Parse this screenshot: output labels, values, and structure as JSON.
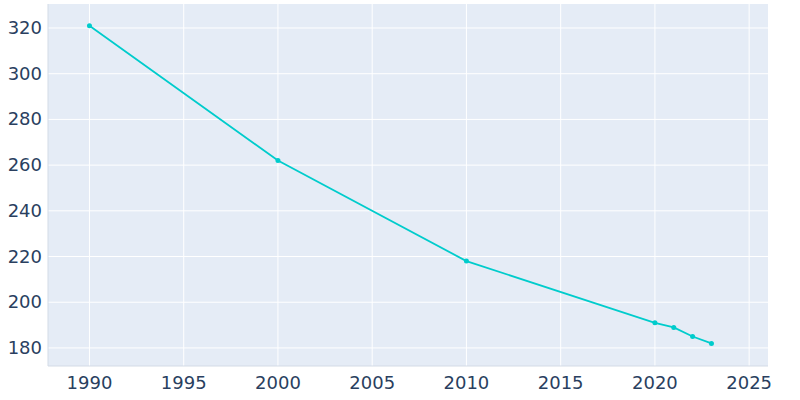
{
  "chart_data": {
    "type": "line",
    "x": [
      1990,
      2000,
      2010,
      2020,
      2021,
      2022,
      2023
    ],
    "values": [
      321,
      262,
      218,
      191,
      189,
      185,
      182
    ],
    "color": "#00cccc",
    "marker": "circle",
    "xlim": [
      1987.8,
      2026
    ],
    "xticks": [
      1990,
      1995,
      2000,
      2005,
      2010,
      2015,
      2020,
      2025
    ],
    "ylim": [
      172.1,
      330.5
    ],
    "yticks": [
      180,
      200,
      220,
      240,
      260,
      280,
      300,
      320
    ],
    "grid": true
  }
}
